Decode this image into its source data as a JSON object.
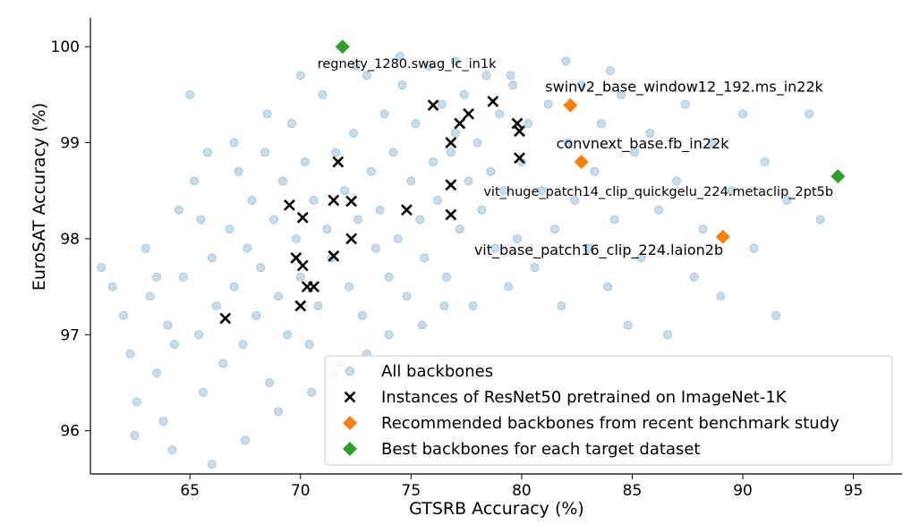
{
  "chart_data": {
    "type": "scatter",
    "xlabel": "GTSRB Accuracy (%)",
    "ylabel": "EuroSAT Accuracy (%)",
    "xlim": [
      60.5,
      97.2
    ],
    "ylim": [
      95.55,
      100.3
    ],
    "xticks": [
      65,
      70,
      75,
      80,
      85,
      90,
      95
    ],
    "yticks": [
      96,
      97,
      98,
      99,
      100
    ],
    "legend_position": "lower-right",
    "grid": false,
    "colors": {
      "all": "#1f77b4",
      "resnet": "#000000",
      "recommended": "#ff7f0e",
      "best": "#2ca02c"
    },
    "series": [
      {
        "name": "All backbones",
        "marker": "circle",
        "note": "background cloud of many backbone results",
        "points": [
          [
            61,
            97.7
          ],
          [
            61.5,
            97.5
          ],
          [
            62,
            97.2
          ],
          [
            62.3,
            96.8
          ],
          [
            62.6,
            96.3
          ],
          [
            63,
            97.9
          ],
          [
            63.2,
            97.4
          ],
          [
            63.5,
            96.6
          ],
          [
            63.8,
            96.1
          ],
          [
            64,
            97.1
          ],
          [
            64.3,
            96.9
          ],
          [
            64.5,
            98.3
          ],
          [
            64.7,
            97.6
          ],
          [
            65,
            99.5
          ],
          [
            65.2,
            98.6
          ],
          [
            65.4,
            97.0
          ],
          [
            65.6,
            96.4
          ],
          [
            65.8,
            98.9
          ],
          [
            66,
            97.8
          ],
          [
            66.2,
            97.3
          ],
          [
            66.5,
            96.7
          ],
          [
            66.8,
            98.1
          ],
          [
            67,
            97.5
          ],
          [
            67.2,
            98.7
          ],
          [
            67.4,
            96.9
          ],
          [
            67.6,
            97.9
          ],
          [
            67.8,
            98.4
          ],
          [
            68,
            97.2
          ],
          [
            68.2,
            97.7
          ],
          [
            68.4,
            98.9
          ],
          [
            68.6,
            96.5
          ],
          [
            68.8,
            98.2
          ],
          [
            69,
            97.4
          ],
          [
            69.2,
            98.6
          ],
          [
            69.4,
            97.0
          ],
          [
            69.6,
            99.2
          ],
          [
            69.8,
            98.0
          ],
          [
            70,
            97.6
          ],
          [
            70.2,
            98.8
          ],
          [
            70.4,
            96.9
          ],
          [
            70.6,
            98.4
          ],
          [
            70.8,
            97.3
          ],
          [
            71,
            99.5
          ],
          [
            71.2,
            98.1
          ],
          [
            71.4,
            97.8
          ],
          [
            71.6,
            98.9
          ],
          [
            71.8,
            96.7
          ],
          [
            72,
            98.5
          ],
          [
            72.2,
            97.5
          ],
          [
            72.4,
            99.1
          ],
          [
            72.6,
            98.2
          ],
          [
            72.8,
            97.2
          ],
          [
            73,
            99.7
          ],
          [
            73.2,
            98.7
          ],
          [
            73.4,
            97.9
          ],
          [
            73.6,
            98.3
          ],
          [
            73.8,
            99.3
          ],
          [
            74,
            97.6
          ],
          [
            74.2,
            98.9
          ],
          [
            74.4,
            98.0
          ],
          [
            74.6,
            99.6
          ],
          [
            74.8,
            97.4
          ],
          [
            75,
            98.6
          ],
          [
            75.2,
            99.2
          ],
          [
            75.4,
            98.2
          ],
          [
            75.6,
            97.8
          ],
          [
            75.8,
            99.8
          ],
          [
            76,
            98.8
          ],
          [
            76.2,
            98.4
          ],
          [
            76.4,
            99.4
          ],
          [
            76.6,
            97.6
          ],
          [
            76.8,
            98.9
          ],
          [
            77,
            99.1
          ],
          [
            77.2,
            98.1
          ],
          [
            77.4,
            99.5
          ],
          [
            77.6,
            98.6
          ],
          [
            77.8,
            97.3
          ],
          [
            78,
            99.0
          ],
          [
            78.2,
            98.3
          ],
          [
            78.4,
            99.7
          ],
          [
            78.6,
            98.7
          ],
          [
            78.8,
            97.9
          ],
          [
            79,
            99.3
          ],
          [
            79.2,
            98.5
          ],
          [
            79.4,
            97.5
          ],
          [
            79.6,
            99.6
          ],
          [
            79.8,
            98.0
          ],
          [
            80,
            98.8
          ],
          [
            80.3,
            99.2
          ],
          [
            80.6,
            97.7
          ],
          [
            80.9,
            98.5
          ],
          [
            81.2,
            99.4
          ],
          [
            81.5,
            98.1
          ],
          [
            81.8,
            97.3
          ],
          [
            82.1,
            99.0
          ],
          [
            82.4,
            98.4
          ],
          [
            82.7,
            99.6
          ],
          [
            83,
            97.9
          ],
          [
            83.3,
            98.7
          ],
          [
            83.6,
            99.2
          ],
          [
            83.9,
            97.5
          ],
          [
            84.2,
            98.2
          ],
          [
            84.5,
            99.5
          ],
          [
            84.8,
            97.1
          ],
          [
            85.1,
            98.9
          ],
          [
            85.4,
            97.8
          ],
          [
            85.8,
            99.1
          ],
          [
            86.2,
            98.3
          ],
          [
            86.6,
            97.0
          ],
          [
            87,
            98.6
          ],
          [
            87.4,
            99.4
          ],
          [
            87.8,
            97.6
          ],
          [
            88.2,
            98.1
          ],
          [
            88.6,
            99.0
          ],
          [
            89,
            97.4
          ],
          [
            89.5,
            98.5
          ],
          [
            90,
            99.3
          ],
          [
            90.5,
            97.9
          ],
          [
            91,
            98.8
          ],
          [
            91.5,
            97.2
          ],
          [
            92,
            98.4
          ],
          [
            93,
            99.3
          ],
          [
            93.5,
            98.2
          ],
          [
            62.5,
            95.95
          ],
          [
            64.2,
            95.8
          ],
          [
            66,
            95.65
          ],
          [
            67.5,
            95.9
          ],
          [
            69,
            96.2
          ],
          [
            70.5,
            96.4
          ],
          [
            71.5,
            96.6
          ],
          [
            73,
            96.8
          ],
          [
            74,
            97.0
          ],
          [
            75.5,
            97.1
          ],
          [
            76.5,
            97.3
          ],
          [
            63.5,
            97.6
          ],
          [
            65.5,
            98.2
          ],
          [
            67,
            99.0
          ],
          [
            68.5,
            99.3
          ],
          [
            70,
            99.7
          ],
          [
            72.5,
            99.8
          ],
          [
            74.5,
            99.9
          ],
          [
            77,
            99.85
          ],
          [
            79.5,
            99.7
          ],
          [
            82,
            99.85
          ],
          [
            84,
            99.75
          ]
        ]
      },
      {
        "name": "Instances of ResNet50 pretrained on ImageNet-1K",
        "marker": "x",
        "points": [
          [
            66.6,
            97.17
          ],
          [
            69.5,
            98.35
          ],
          [
            70.1,
            98.22
          ],
          [
            69.8,
            97.8
          ],
          [
            70.1,
            97.72
          ],
          [
            70.3,
            97.5
          ],
          [
            70.6,
            97.5
          ],
          [
            70.0,
            97.3
          ],
          [
            71.5,
            98.4
          ],
          [
            71.7,
            98.8
          ],
          [
            71.5,
            97.82
          ],
          [
            72.3,
            98.39
          ],
          [
            72.3,
            98.0
          ],
          [
            74.8,
            98.3
          ],
          [
            76.0,
            99.39
          ],
          [
            76.8,
            99.0
          ],
          [
            77.2,
            99.2
          ],
          [
            77.6,
            99.3
          ],
          [
            78.7,
            99.43
          ],
          [
            76.8,
            98.56
          ],
          [
            76.8,
            98.25
          ],
          [
            79.8,
            99.2
          ],
          [
            79.9,
            99.12
          ],
          [
            79.9,
            98.84
          ]
        ]
      },
      {
        "name": "Recommended backbones from recent benchmark study",
        "marker": "diamond",
        "points": [
          {
            "x": 82.2,
            "y": 99.39,
            "label": "swinv2_base_window12_192.ms_in22k"
          },
          {
            "x": 82.7,
            "y": 98.8,
            "label": "convnext_base.fb_in22k"
          },
          {
            "x": 89.1,
            "y": 98.02,
            "label": "vit_base_patch16_clip_224.laion2b"
          }
        ]
      },
      {
        "name": "Best backbones for each target dataset",
        "marker": "diamond",
        "points": [
          {
            "x": 71.9,
            "y": 100.0,
            "label": "regnety_1280.swag_lc_in1k"
          },
          {
            "x": 94.3,
            "y": 98.65,
            "label": "vit_huge_patch14_clip_quickgelu_224.metaclip_2pt5b"
          }
        ]
      }
    ]
  }
}
